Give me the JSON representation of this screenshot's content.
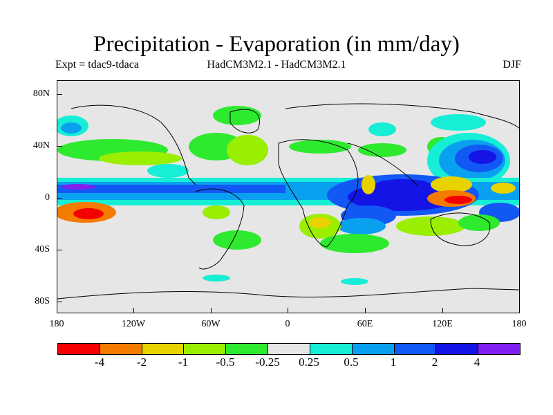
{
  "title": "Precipitation - Evaporation (in mm/day)",
  "subtitle": {
    "left": "Expt = tdac9-tdaca",
    "center": "HadCM3M2.1 - HadCM3M2.1",
    "right": "DJF"
  },
  "axes": {
    "lat_labels": [
      "80N",
      "40N",
      "0",
      "40S",
      "80S"
    ],
    "lon_labels": [
      "180",
      "120W",
      "60W",
      "0",
      "60E",
      "120E",
      "180"
    ]
  },
  "colorbar": {
    "colors": [
      "#f40000",
      "#f47a00",
      "#e8d200",
      "#9aee00",
      "#2eea2e",
      "#e6e6e6",
      "#16eed6",
      "#0aa0f0",
      "#1258f4",
      "#1414e6",
      "#8020f0"
    ],
    "labels": [
      "-4",
      "-2",
      "-1",
      "-0.5",
      "-0.25",
      "0.25",
      "0.5",
      "1",
      "2",
      "4"
    ]
  },
  "field_colors": {
    "red": "#f40000",
    "orange": "#f47a00",
    "yellow": "#e8d200",
    "lightgreen": "#9aee00",
    "green": "#2eea2e",
    "neutral": "#e6e6e6",
    "cyan": "#16eed6",
    "sky": "#0aa0f0",
    "blue": "#1258f4",
    "navy": "#1414e6",
    "purple": "#8020f0"
  }
}
